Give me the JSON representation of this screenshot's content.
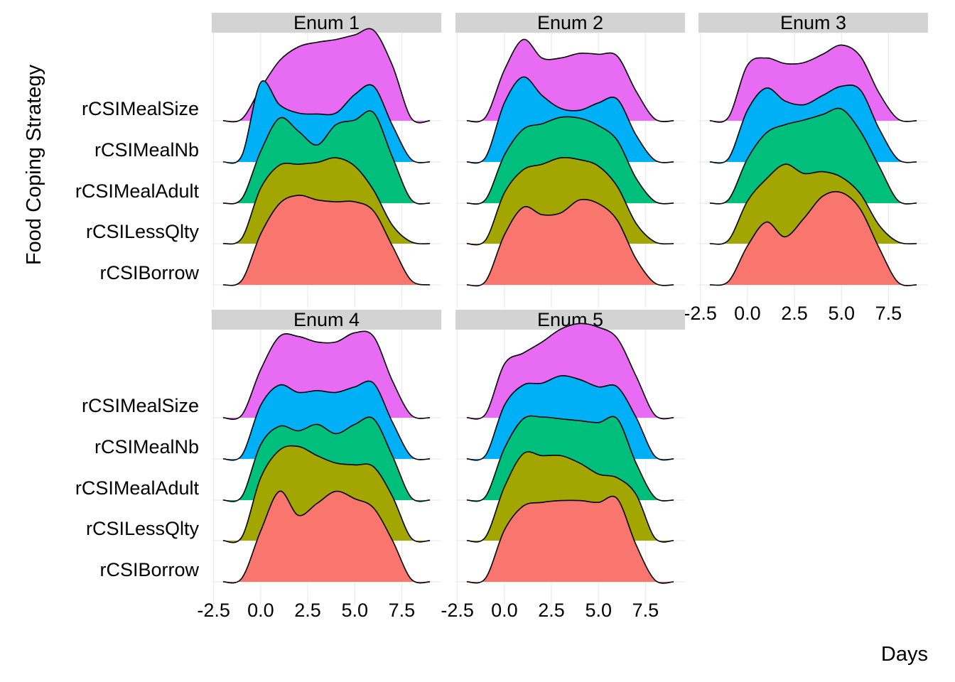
{
  "chart_data": {
    "type": "ridgeline",
    "xlabel": "Days",
    "ylabel": "Food Coping Strategy",
    "x_ticks": [
      "-2.5",
      "0.0",
      "2.5",
      "5.0",
      "7.5"
    ],
    "x_tick_values": [
      -2.5,
      0.0,
      2.5,
      5.0,
      7.5
    ],
    "xlim": [
      -2.6,
      9.6
    ],
    "categories": [
      "rCSIBorrow",
      "rCSILessQlty",
      "rCSIMealAdult",
      "rCSIMealNb",
      "rCSIMealSize"
    ],
    "colors": {
      "rCSIBorrow": "#F8766D",
      "rCSILessQlty": "#A3A500",
      "rCSIMealAdult": "#00BF7D",
      "rCSIMealNb": "#00B0F6",
      "rCSIMealSize": "#E76BF3"
    },
    "panel_strip_color": "#D3D3D3",
    "grid": true,
    "density_x": [
      -2,
      -1,
      0,
      1,
      2,
      3,
      4,
      5,
      6,
      7,
      8,
      9
    ],
    "panels": [
      {
        "title": "Enum 1",
        "series": [
          {
            "name": "rCSIBorrow",
            "y": [
              0.0,
              0.05,
              0.55,
              0.88,
              0.97,
              0.92,
              0.9,
              0.9,
              0.8,
              0.42,
              0.05,
              0.0
            ]
          },
          {
            "name": "rCSILessQlty",
            "y": [
              0.0,
              0.06,
              0.6,
              0.85,
              0.86,
              0.88,
              0.93,
              0.84,
              0.58,
              0.2,
              0.02,
              0.0
            ]
          },
          {
            "name": "rCSIMealAdult",
            "y": [
              0.0,
              0.05,
              0.56,
              0.92,
              0.78,
              0.63,
              0.85,
              0.9,
              0.98,
              0.5,
              0.04,
              0.0
            ]
          },
          {
            "name": "rCSIMealNb",
            "y": [
              0.0,
              0.07,
              0.86,
              0.62,
              0.53,
              0.52,
              0.53,
              0.73,
              0.82,
              0.4,
              0.03,
              0.0
            ]
          },
          {
            "name": "rCSIMealSize",
            "y": [
              0.0,
              0.02,
              0.35,
              0.65,
              0.8,
              0.85,
              0.88,
              0.93,
              0.98,
              0.6,
              0.03,
              0.0
            ]
          }
        ]
      },
      {
        "title": "Enum 2",
        "series": [
          {
            "name": "rCSIBorrow",
            "y": [
              0.0,
              0.04,
              0.54,
              0.84,
              0.76,
              0.78,
              0.92,
              0.88,
              0.7,
              0.28,
              0.02,
              0.0
            ]
          },
          {
            "name": "rCSILessQlty",
            "y": [
              0.0,
              0.04,
              0.55,
              0.8,
              0.86,
              0.93,
              0.91,
              0.84,
              0.62,
              0.22,
              0.02,
              0.0
            ]
          },
          {
            "name": "rCSIMealAdult",
            "y": [
              0.0,
              0.04,
              0.52,
              0.8,
              0.86,
              0.93,
              0.92,
              0.84,
              0.68,
              0.27,
              0.02,
              0.0
            ]
          },
          {
            "name": "rCSIMealNb",
            "y": [
              0.0,
              0.05,
              0.64,
              0.92,
              0.72,
              0.58,
              0.56,
              0.64,
              0.68,
              0.29,
              0.02,
              0.0
            ]
          },
          {
            "name": "rCSIMealSize",
            "y": [
              0.0,
              0.04,
              0.55,
              0.88,
              0.68,
              0.68,
              0.73,
              0.72,
              0.7,
              0.32,
              0.02,
              0.0
            ]
          }
        ]
      },
      {
        "title": "Enum 3",
        "series": [
          {
            "name": "rCSIBorrow",
            "y": [
              0.0,
              0.04,
              0.42,
              0.68,
              0.52,
              0.72,
              0.96,
              1.0,
              0.82,
              0.4,
              0.03,
              0.0
            ]
          },
          {
            "name": "rCSILessQlty",
            "y": [
              0.0,
              0.04,
              0.46,
              0.7,
              0.86,
              0.76,
              0.78,
              0.72,
              0.54,
              0.2,
              0.02,
              0.0
            ]
          },
          {
            "name": "rCSIMealAdult",
            "y": [
              0.0,
              0.04,
              0.48,
              0.76,
              0.85,
              0.9,
              0.96,
              1.02,
              0.78,
              0.4,
              0.03,
              0.0
            ]
          },
          {
            "name": "rCSIMealNb",
            "y": [
              0.0,
              0.04,
              0.56,
              0.8,
              0.66,
              0.62,
              0.72,
              0.82,
              0.78,
              0.36,
              0.03,
              0.0
            ]
          },
          {
            "name": "rCSIMealSize",
            "y": [
              0.0,
              0.04,
              0.6,
              0.68,
              0.62,
              0.63,
              0.72,
              0.82,
              0.7,
              0.3,
              0.02,
              0.0
            ]
          }
        ]
      },
      {
        "title": "Enum 4",
        "series": [
          {
            "name": "rCSIBorrow",
            "y": [
              0.0,
              0.04,
              0.55,
              0.98,
              0.72,
              0.85,
              0.98,
              0.9,
              0.8,
              0.45,
              0.03,
              0.0
            ]
          },
          {
            "name": "rCSILessQlty",
            "y": [
              0.0,
              0.04,
              0.68,
              0.98,
              1.02,
              0.92,
              0.84,
              0.82,
              0.8,
              0.48,
              0.03,
              0.0
            ]
          },
          {
            "name": "rCSIMealAdult",
            "y": [
              0.0,
              0.04,
              0.6,
              0.8,
              0.75,
              0.82,
              0.72,
              0.82,
              0.88,
              0.48,
              0.03,
              0.0
            ]
          },
          {
            "name": "rCSIMealNb",
            "y": [
              0.0,
              0.04,
              0.58,
              0.8,
              0.72,
              0.74,
              0.72,
              0.78,
              0.82,
              0.4,
              0.03,
              0.0
            ]
          },
          {
            "name": "rCSIMealSize",
            "y": [
              0.0,
              0.03,
              0.52,
              0.88,
              0.88,
              0.82,
              0.82,
              0.92,
              0.88,
              0.4,
              0.03,
              0.0
            ]
          }
        ]
      },
      {
        "title": "Enum 5",
        "series": [
          {
            "name": "rCSIBorrow",
            "y": [
              0.0,
              0.04,
              0.56,
              0.82,
              0.86,
              0.88,
              0.88,
              0.86,
              0.9,
              0.4,
              0.02,
              0.0
            ]
          },
          {
            "name": "rCSILessQlty",
            "y": [
              0.0,
              0.04,
              0.58,
              0.94,
              0.92,
              0.92,
              0.84,
              0.72,
              0.68,
              0.5,
              0.03,
              0.0
            ]
          },
          {
            "name": "rCSIMealAdult",
            "y": [
              0.0,
              0.04,
              0.56,
              0.88,
              0.9,
              0.88,
              0.86,
              0.84,
              0.88,
              0.4,
              0.03,
              0.0
            ]
          },
          {
            "name": "rCSIMealNb",
            "y": [
              0.0,
              0.04,
              0.58,
              0.8,
              0.82,
              0.9,
              0.86,
              0.78,
              0.78,
              0.45,
              0.03,
              0.0
            ]
          },
          {
            "name": "rCSIMealSize",
            "y": [
              0.0,
              0.04,
              0.58,
              0.7,
              0.82,
              0.96,
              1.02,
              0.98,
              0.86,
              0.45,
              0.03,
              0.0
            ]
          }
        ]
      }
    ]
  }
}
